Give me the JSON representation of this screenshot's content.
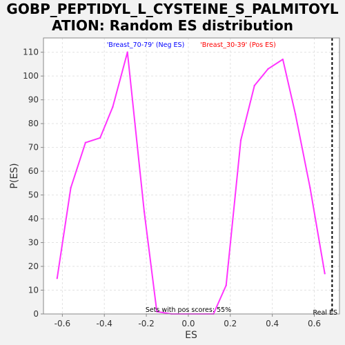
{
  "chart_data": {
    "type": "line",
    "title_line1": "GOBP_PEPTIDYL_L_CYSTEINE_S_PALMITOYL",
    "title_line2": "ATION: Random ES distribution",
    "xlabel": "ES",
    "ylabel": "P(ES)",
    "xlim": [
      -0.69,
      0.72
    ],
    "ylim": [
      0,
      116
    ],
    "xticks": [
      -0.6,
      -0.4,
      -0.2,
      0.0,
      0.2,
      0.4,
      0.6
    ],
    "xtick_labels": [
      "-0.6",
      "-0.4",
      "-0.2",
      "0.0",
      "0.2",
      "0.4",
      "0.6"
    ],
    "yticks": [
      0,
      10,
      20,
      30,
      40,
      50,
      60,
      70,
      80,
      90,
      100,
      110
    ],
    "ytick_labels": [
      "0",
      "10",
      "20",
      "30",
      "40",
      "50",
      "60",
      "70",
      "80",
      "90",
      "100",
      "110"
    ],
    "grid": true,
    "line_color": "#ff33ff",
    "series": [
      {
        "x": [
          -0.625,
          -0.56,
          -0.49,
          -0.42,
          -0.36,
          -0.29,
          -0.21,
          -0.15,
          -0.08,
          0.0,
          0.12,
          0.18,
          0.25,
          0.315,
          0.38,
          0.45,
          0.51,
          0.58,
          0.65
        ],
        "y": [
          15,
          53,
          72,
          74,
          87,
          110,
          43,
          1,
          0,
          0,
          0,
          12,
          73,
          96,
          103,
          107,
          84,
          53,
          17
        ]
      }
    ],
    "legend": [
      {
        "text": "'Breast_70-79' (Neg ES)",
        "color": "#0000ff"
      },
      {
        "text": "'Breast_30-39' (Pos ES)",
        "color": "#ff0000"
      }
    ],
    "legend_placement": "top",
    "real_es": {
      "x": 0.685,
      "label": "Real ES",
      "color": "#000000"
    },
    "annotation": "Sets with pos scores: 55%"
  }
}
